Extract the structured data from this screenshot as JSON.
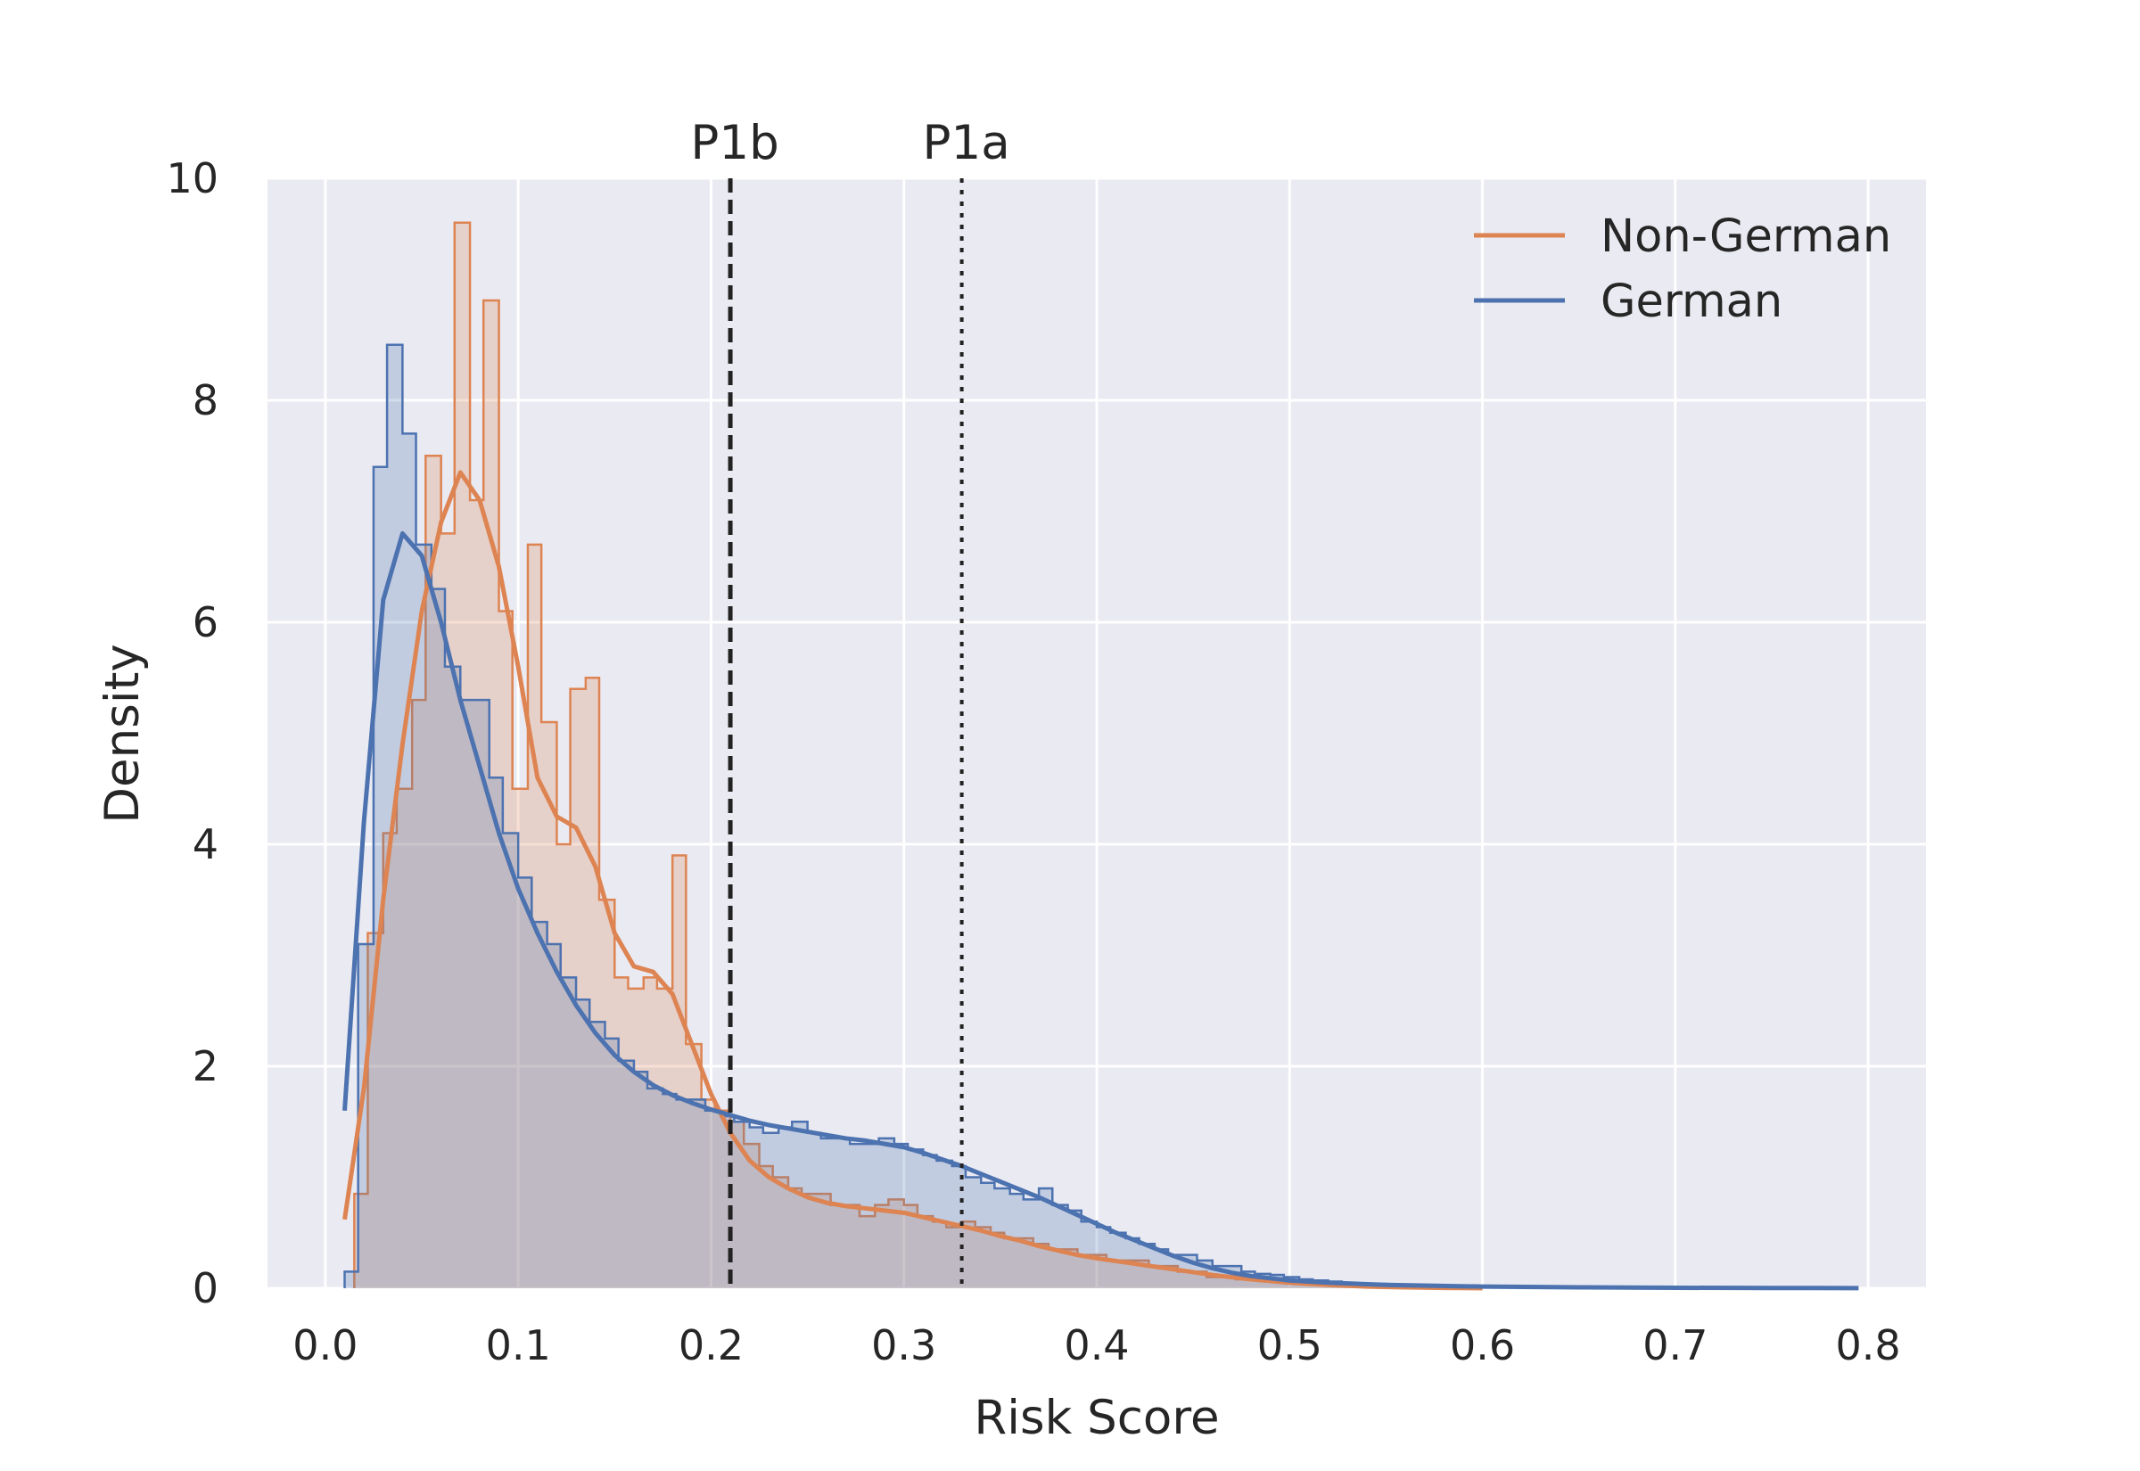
{
  "chart_data": {
    "type": "histogram_kde",
    "xlabel": "Risk Score",
    "ylabel": "Density",
    "xlim": [
      -0.03,
      0.83
    ],
    "ylim": [
      0,
      10
    ],
    "x_ticks": [
      "0.0",
      "0.1",
      "0.2",
      "0.3",
      "0.4",
      "0.5",
      "0.6",
      "0.7",
      "0.8"
    ],
    "y_ticks": [
      "0",
      "2",
      "4",
      "6",
      "8",
      "10"
    ],
    "grid": true,
    "legend": {
      "placement": "top-right",
      "entries": [
        "Non-German",
        "German"
      ]
    },
    "vertical_lines": [
      {
        "label": "P1b",
        "x": 0.21,
        "style": "dashed"
      },
      {
        "label": "P1a",
        "x": 0.33,
        "style": "dotted"
      }
    ],
    "series": [
      {
        "name": "Non-German",
        "color": "#dd8452",
        "hist_edges": [
          0.015,
          0.022,
          0.03,
          0.037,
          0.045,
          0.052,
          0.06,
          0.067,
          0.075,
          0.082,
          0.09,
          0.097,
          0.105,
          0.112,
          0.12,
          0.127,
          0.135,
          0.142,
          0.15,
          0.157,
          0.165,
          0.172,
          0.18,
          0.187,
          0.195,
          0.202,
          0.21,
          0.217,
          0.225,
          0.232,
          0.24,
          0.247,
          0.255,
          0.262,
          0.27,
          0.277,
          0.285,
          0.292,
          0.3,
          0.307,
          0.315,
          0.322,
          0.33,
          0.337,
          0.345,
          0.352,
          0.36,
          0.367,
          0.375,
          0.382,
          0.39,
          0.397,
          0.405,
          0.412,
          0.42,
          0.427,
          0.435,
          0.442,
          0.45,
          0.457,
          0.465,
          0.472,
          0.48,
          0.487,
          0.495,
          0.502,
          0.51,
          0.517,
          0.525,
          0.532,
          0.54,
          0.547,
          0.555,
          0.562,
          0.57
        ],
        "hist_density": [
          0.85,
          3.2,
          4.1,
          4.5,
          5.3,
          7.5,
          6.8,
          9.6,
          7.1,
          8.9,
          6.1,
          4.5,
          6.7,
          5.1,
          4.0,
          5.4,
          5.5,
          3.5,
          2.8,
          2.7,
          2.8,
          2.7,
          3.9,
          2.2,
          1.7,
          1.6,
          1.5,
          1.3,
          1.1,
          1.0,
          0.9,
          0.85,
          0.85,
          0.75,
          0.75,
          0.65,
          0.75,
          0.8,
          0.75,
          0.65,
          0.6,
          0.55,
          0.6,
          0.55,
          0.5,
          0.45,
          0.45,
          0.4,
          0.35,
          0.35,
          0.3,
          0.3,
          0.25,
          0.25,
          0.25,
          0.2,
          0.2,
          0.15,
          0.15,
          0.1,
          0.1,
          0.08,
          0.07,
          0.06,
          0.05,
          0.04,
          0.03,
          0.03,
          0.02,
          0.02,
          0.01,
          0.01,
          0.01,
          0.0
        ],
        "kde": [
          [
            0.01,
            0.62
          ],
          [
            0.02,
            1.8
          ],
          [
            0.03,
            3.5
          ],
          [
            0.04,
            4.9
          ],
          [
            0.05,
            6.1
          ],
          [
            0.06,
            6.9
          ],
          [
            0.07,
            7.35
          ],
          [
            0.08,
            7.1
          ],
          [
            0.09,
            6.5
          ],
          [
            0.1,
            5.6
          ],
          [
            0.11,
            4.6
          ],
          [
            0.12,
            4.25
          ],
          [
            0.13,
            4.15
          ],
          [
            0.14,
            3.8
          ],
          [
            0.15,
            3.2
          ],
          [
            0.16,
            2.9
          ],
          [
            0.17,
            2.85
          ],
          [
            0.18,
            2.65
          ],
          [
            0.19,
            2.2
          ],
          [
            0.2,
            1.75
          ],
          [
            0.21,
            1.4
          ],
          [
            0.22,
            1.15
          ],
          [
            0.23,
            1.0
          ],
          [
            0.24,
            0.9
          ],
          [
            0.25,
            0.82
          ],
          [
            0.26,
            0.77
          ],
          [
            0.27,
            0.74
          ],
          [
            0.28,
            0.72
          ],
          [
            0.29,
            0.7
          ],
          [
            0.3,
            0.68
          ],
          [
            0.31,
            0.64
          ],
          [
            0.32,
            0.6
          ],
          [
            0.33,
            0.56
          ],
          [
            0.34,
            0.52
          ],
          [
            0.35,
            0.47
          ],
          [
            0.36,
            0.43
          ],
          [
            0.37,
            0.38
          ],
          [
            0.38,
            0.34
          ],
          [
            0.39,
            0.3
          ],
          [
            0.4,
            0.27
          ],
          [
            0.42,
            0.22
          ],
          [
            0.44,
            0.17
          ],
          [
            0.46,
            0.12
          ],
          [
            0.48,
            0.08
          ],
          [
            0.5,
            0.05
          ],
          [
            0.52,
            0.03
          ],
          [
            0.54,
            0.015
          ],
          [
            0.56,
            0.008
          ],
          [
            0.58,
            0.003
          ],
          [
            0.6,
            0.0
          ]
        ]
      },
      {
        "name": "German",
        "color": "#4c72b0",
        "hist_edges": [
          0.01,
          0.017,
          0.025,
          0.032,
          0.04,
          0.047,
          0.055,
          0.062,
          0.07,
          0.077,
          0.085,
          0.092,
          0.1,
          0.107,
          0.115,
          0.122,
          0.13,
          0.137,
          0.145,
          0.152,
          0.16,
          0.167,
          0.175,
          0.182,
          0.19,
          0.197,
          0.205,
          0.212,
          0.22,
          0.227,
          0.235,
          0.242,
          0.25,
          0.257,
          0.265,
          0.272,
          0.28,
          0.287,
          0.295,
          0.302,
          0.31,
          0.317,
          0.325,
          0.332,
          0.34,
          0.347,
          0.355,
          0.362,
          0.37,
          0.377,
          0.385,
          0.392,
          0.4,
          0.407,
          0.415,
          0.422,
          0.43,
          0.437,
          0.445,
          0.452,
          0.46,
          0.467,
          0.475,
          0.482,
          0.49,
          0.497,
          0.505,
          0.512,
          0.52,
          0.527,
          0.535,
          0.542,
          0.55,
          0.557,
          0.565,
          0.572,
          0.58,
          0.6,
          0.65,
          0.7,
          0.75,
          0.795
        ],
        "hist_density": [
          0.15,
          3.1,
          7.4,
          8.5,
          7.7,
          6.7,
          6.3,
          5.6,
          5.3,
          5.3,
          4.6,
          4.1,
          3.7,
          3.3,
          3.1,
          2.8,
          2.6,
          2.4,
          2.25,
          2.05,
          1.95,
          1.8,
          1.75,
          1.7,
          1.7,
          1.6,
          1.55,
          1.5,
          1.45,
          1.4,
          1.45,
          1.5,
          1.4,
          1.35,
          1.35,
          1.3,
          1.3,
          1.35,
          1.3,
          1.25,
          1.2,
          1.15,
          1.1,
          1.0,
          0.95,
          0.9,
          0.85,
          0.8,
          0.9,
          0.75,
          0.7,
          0.6,
          0.55,
          0.5,
          0.45,
          0.4,
          0.35,
          0.3,
          0.3,
          0.25,
          0.2,
          0.2,
          0.15,
          0.13,
          0.12,
          0.1,
          0.08,
          0.07,
          0.06,
          0.05,
          0.04,
          0.04,
          0.03,
          0.03,
          0.02,
          0.02,
          0.01,
          0.01,
          0.005,
          0.003,
          0.0
        ],
        "kde": [
          [
            0.01,
            1.6
          ],
          [
            0.02,
            4.2
          ],
          [
            0.03,
            6.2
          ],
          [
            0.04,
            6.8
          ],
          [
            0.05,
            6.6
          ],
          [
            0.06,
            6.0
          ],
          [
            0.07,
            5.3
          ],
          [
            0.08,
            4.7
          ],
          [
            0.09,
            4.1
          ],
          [
            0.1,
            3.6
          ],
          [
            0.11,
            3.2
          ],
          [
            0.12,
            2.85
          ],
          [
            0.13,
            2.55
          ],
          [
            0.14,
            2.3
          ],
          [
            0.15,
            2.1
          ],
          [
            0.16,
            1.95
          ],
          [
            0.17,
            1.83
          ],
          [
            0.18,
            1.74
          ],
          [
            0.19,
            1.67
          ],
          [
            0.2,
            1.61
          ],
          [
            0.21,
            1.56
          ],
          [
            0.22,
            1.51
          ],
          [
            0.23,
            1.47
          ],
          [
            0.24,
            1.44
          ],
          [
            0.25,
            1.41
          ],
          [
            0.26,
            1.38
          ],
          [
            0.27,
            1.35
          ],
          [
            0.28,
            1.33
          ],
          [
            0.29,
            1.3
          ],
          [
            0.3,
            1.27
          ],
          [
            0.31,
            1.22
          ],
          [
            0.32,
            1.16
          ],
          [
            0.33,
            1.1
          ],
          [
            0.34,
            1.03
          ],
          [
            0.35,
            0.96
          ],
          [
            0.36,
            0.89
          ],
          [
            0.37,
            0.82
          ],
          [
            0.38,
            0.74
          ],
          [
            0.39,
            0.66
          ],
          [
            0.4,
            0.58
          ],
          [
            0.41,
            0.5
          ],
          [
            0.42,
            0.43
          ],
          [
            0.43,
            0.36
          ],
          [
            0.44,
            0.29
          ],
          [
            0.45,
            0.23
          ],
          [
            0.46,
            0.18
          ],
          [
            0.47,
            0.14
          ],
          [
            0.48,
            0.11
          ],
          [
            0.5,
            0.07
          ],
          [
            0.52,
            0.05
          ],
          [
            0.55,
            0.03
          ],
          [
            0.6,
            0.015
          ],
          [
            0.65,
            0.008
          ],
          [
            0.7,
            0.004
          ],
          [
            0.75,
            0.002
          ],
          [
            0.795,
            0.001
          ]
        ]
      }
    ]
  }
}
